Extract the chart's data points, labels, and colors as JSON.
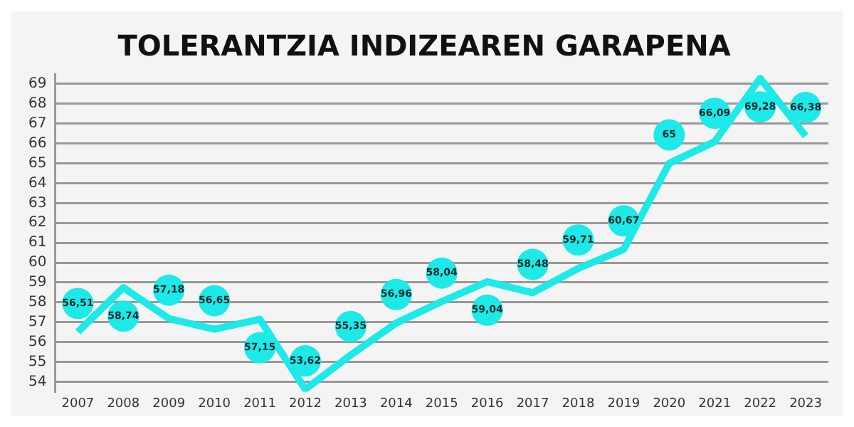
{
  "chart_data": {
    "type": "line",
    "title": "TOLERANTZIA INDIZEAREN GARAPENA",
    "categories": [
      "2007",
      "2008",
      "2009",
      "2010",
      "2011",
      "2012",
      "2013",
      "2014",
      "2015",
      "2016",
      "2017",
      "2018",
      "2019",
      "2020",
      "2021",
      "2022",
      "2023"
    ],
    "series": [
      {
        "color": "#1de9e9",
        "values": [
          56.51,
          58.74,
          57.18,
          56.65,
          57.15,
          53.62,
          55.35,
          56.96,
          58.04,
          59.04,
          58.48,
          59.71,
          60.67,
          65,
          66.09,
          69.28,
          66.38
        ],
        "value_labels": [
          "56,51",
          "58,74",
          "57,18",
          "56,65",
          "57,15",
          "53,62",
          "55,35",
          "56,96",
          "58,04",
          "59,04",
          "58,48",
          "59,71",
          "60,67",
          "65",
          "66,09",
          "69,28",
          "66,38"
        ]
      }
    ],
    "ylim": [
      53.5,
      69.5
    ],
    "yticks": [
      54,
      55,
      56,
      57,
      58,
      59,
      60,
      61,
      62,
      63,
      64,
      65,
      66,
      67,
      68,
      69
    ],
    "grid": "y",
    "legend": false,
    "marker": "none",
    "line_style": "solid"
  }
}
